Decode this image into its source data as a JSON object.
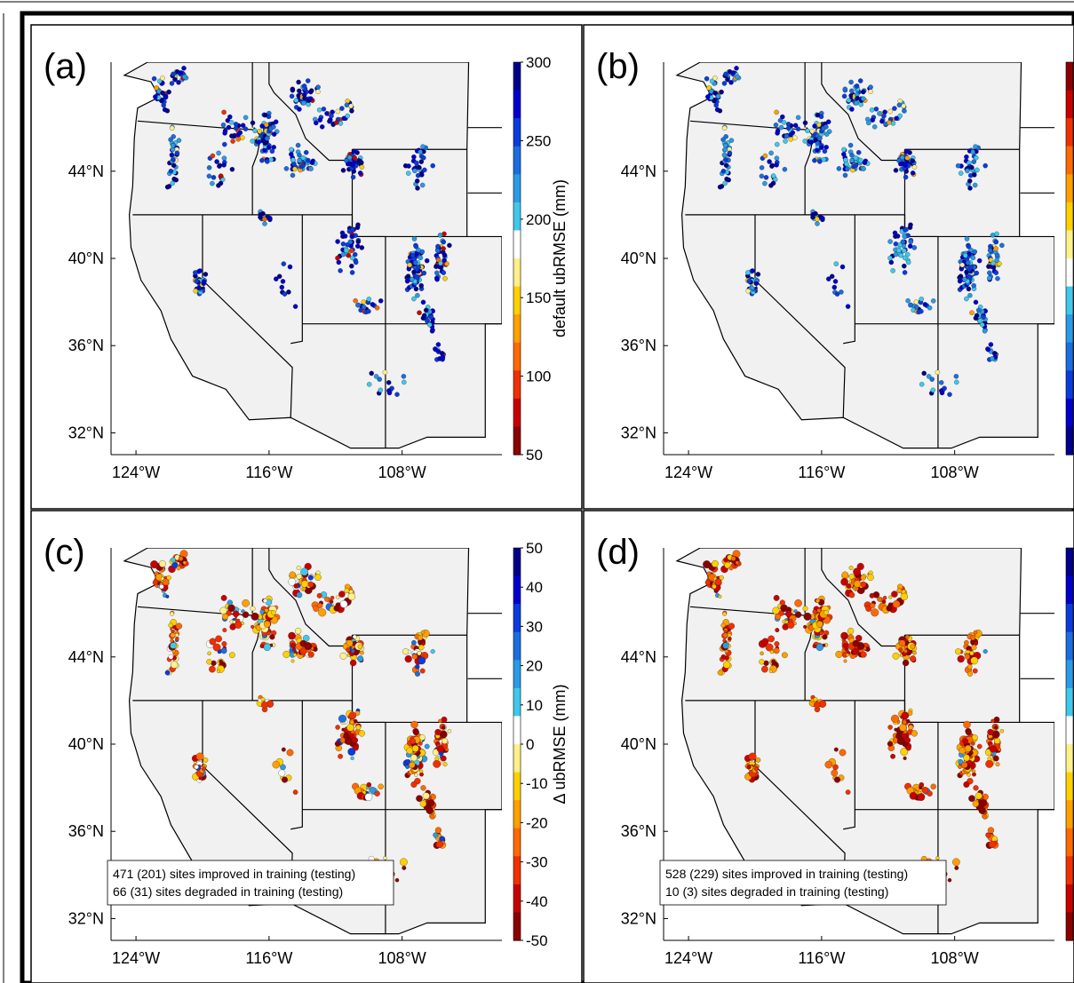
{
  "chart_data": [
    {
      "type": "scatter",
      "panel_label": "(a)",
      "colorbar": {
        "label": "default ubRMSE (mm)",
        "ticks": [
          50,
          100,
          150,
          200,
          250,
          300
        ],
        "range": [
          50,
          300
        ],
        "tick_labels_visible": true
      },
      "x_ticks": [
        "124°W",
        "116°W",
        "108°W"
      ],
      "y_ticks": [
        "44°N",
        "40°N",
        "36°N",
        "32°N"
      ],
      "grid": false,
      "annotation": []
    },
    {
      "type": "scatter",
      "panel_label": "(b)",
      "colorbar": {
        "label": "",
        "ticks": [],
        "range": [
          50,
          300
        ],
        "reversed": true,
        "tick_labels_visible": false
      },
      "x_ticks": [
        "124°W",
        "116°W",
        "108°W"
      ],
      "y_ticks": [
        "44°N",
        "40°N",
        "36°N",
        "32°N"
      ],
      "grid": false,
      "annotation": []
    },
    {
      "type": "scatter",
      "panel_label": "(c)",
      "colorbar": {
        "label": "Δ ubRMSE (mm)",
        "ticks": [
          50,
          40,
          30,
          20,
          10,
          0,
          -10,
          -20,
          -30,
          -40,
          -50
        ],
        "range": [
          -50,
          50
        ],
        "tick_labels_visible": true
      },
      "x_ticks": [
        "124°W",
        "116°W",
        "108°W"
      ],
      "y_ticks": [
        "44°N",
        "40°N",
        "36°N",
        "32°N"
      ],
      "grid": false,
      "annotation": [
        "471 (201) sites improved in training (testing)",
        "66 (31) sites degraded in training (testing)"
      ]
    },
    {
      "type": "scatter",
      "panel_label": "(d)",
      "colorbar": {
        "label": "",
        "ticks": [],
        "range": [
          -50,
          50
        ],
        "tick_labels_visible": false
      },
      "x_ticks": [
        "124°W",
        "116°W",
        "108°W"
      ],
      "y_ticks": [
        "44°N",
        "40°N",
        "36°N",
        "32°N"
      ],
      "grid": false,
      "annotation": [
        "528 (229) sites improved in training (testing)",
        "10 (3) sites degraded in training (testing)"
      ]
    }
  ],
  "colors": {
    "land": "#f1f1f1",
    "border": "#000000",
    "ubrmse_scale": [
      "#00008b",
      "#0000cd",
      "#0a3cdc",
      "#1a6ee0",
      "#2a9be6",
      "#40c8ec",
      "#ffffff",
      "#fff08a",
      "#ffd000",
      "#ffa000",
      "#ff6a00",
      "#f03000",
      "#c80000",
      "#8b0000"
    ]
  }
}
